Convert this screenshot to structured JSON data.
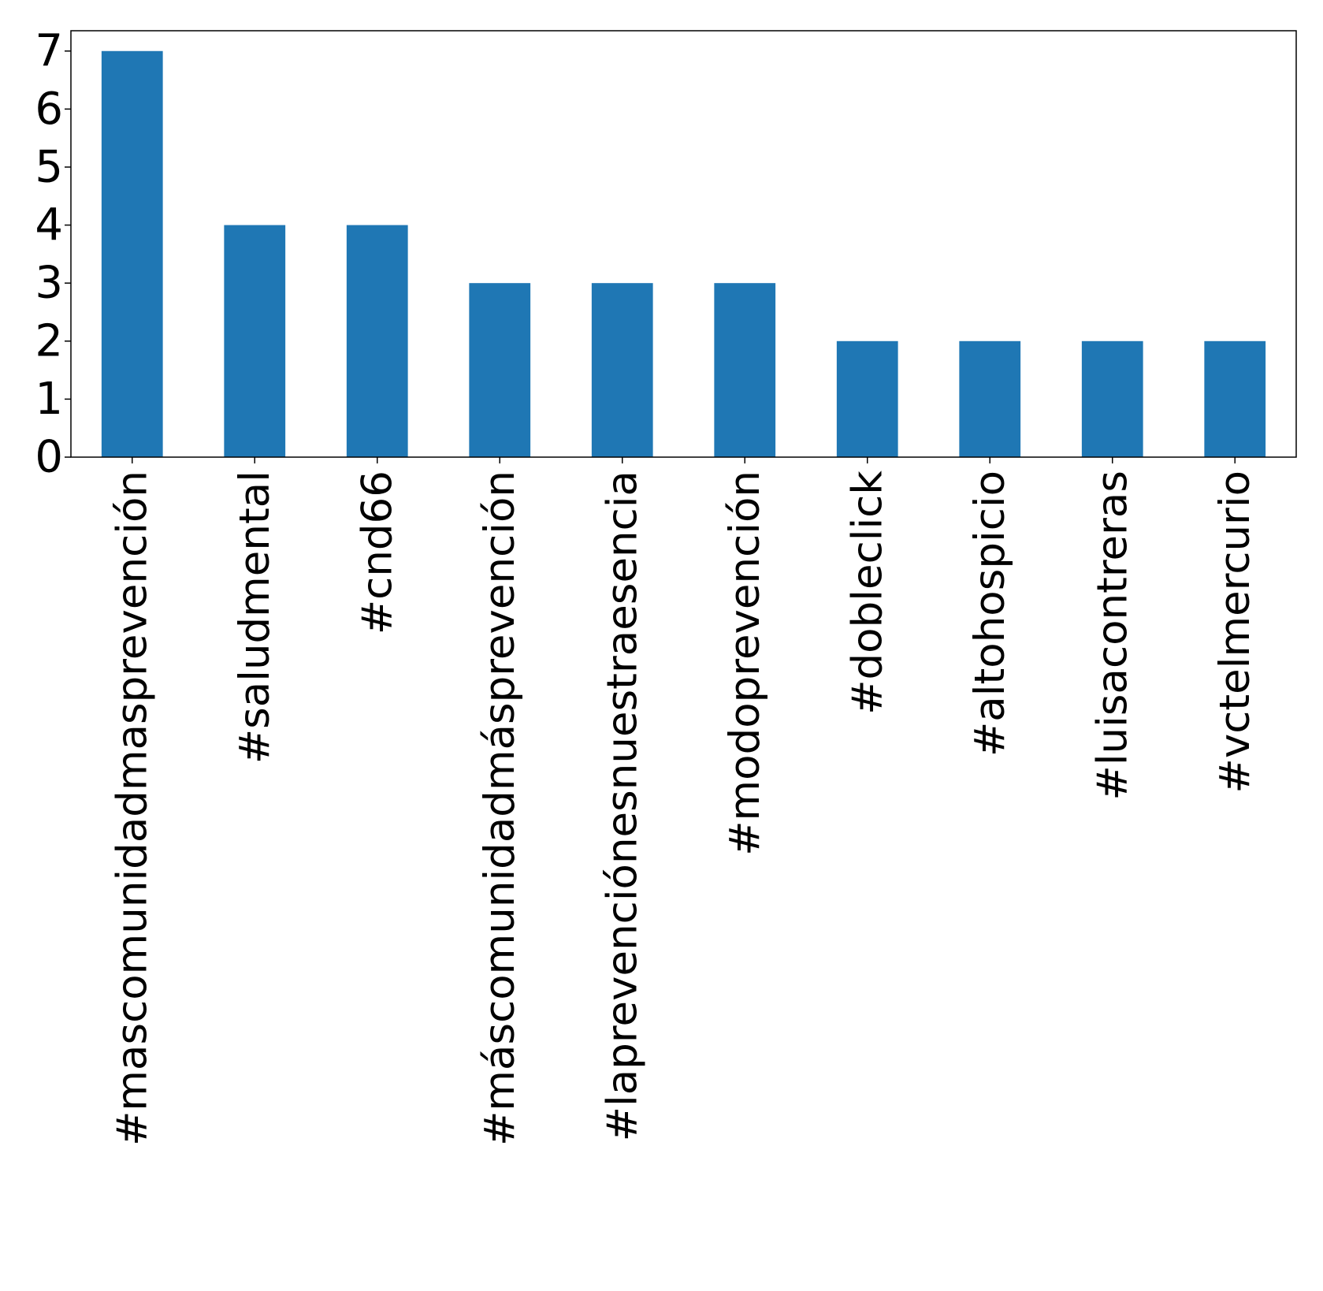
{
  "chart_data": {
    "type": "bar",
    "categories": [
      "#mascomunidadmasprevención",
      "#saludmental",
      "#cnd66",
      "#máscomunidadmásprevención",
      "#laprevenciónesnuestraesencia",
      "#modoprevención",
      "#dobleclick",
      "#altohospicio",
      "#luisacontreras",
      "#vctelmercurio"
    ],
    "values": [
      7,
      4,
      4,
      3,
      3,
      3,
      2,
      2,
      2,
      2
    ],
    "ylim": [
      0,
      7.35
    ],
    "yticks": [
      "0",
      "1",
      "2",
      "3",
      "4",
      "5",
      "6",
      "7"
    ],
    "title": "",
    "xlabel": "",
    "ylabel": "",
    "bar_color": "#1f77b4",
    "grid": false,
    "legend": "none"
  }
}
